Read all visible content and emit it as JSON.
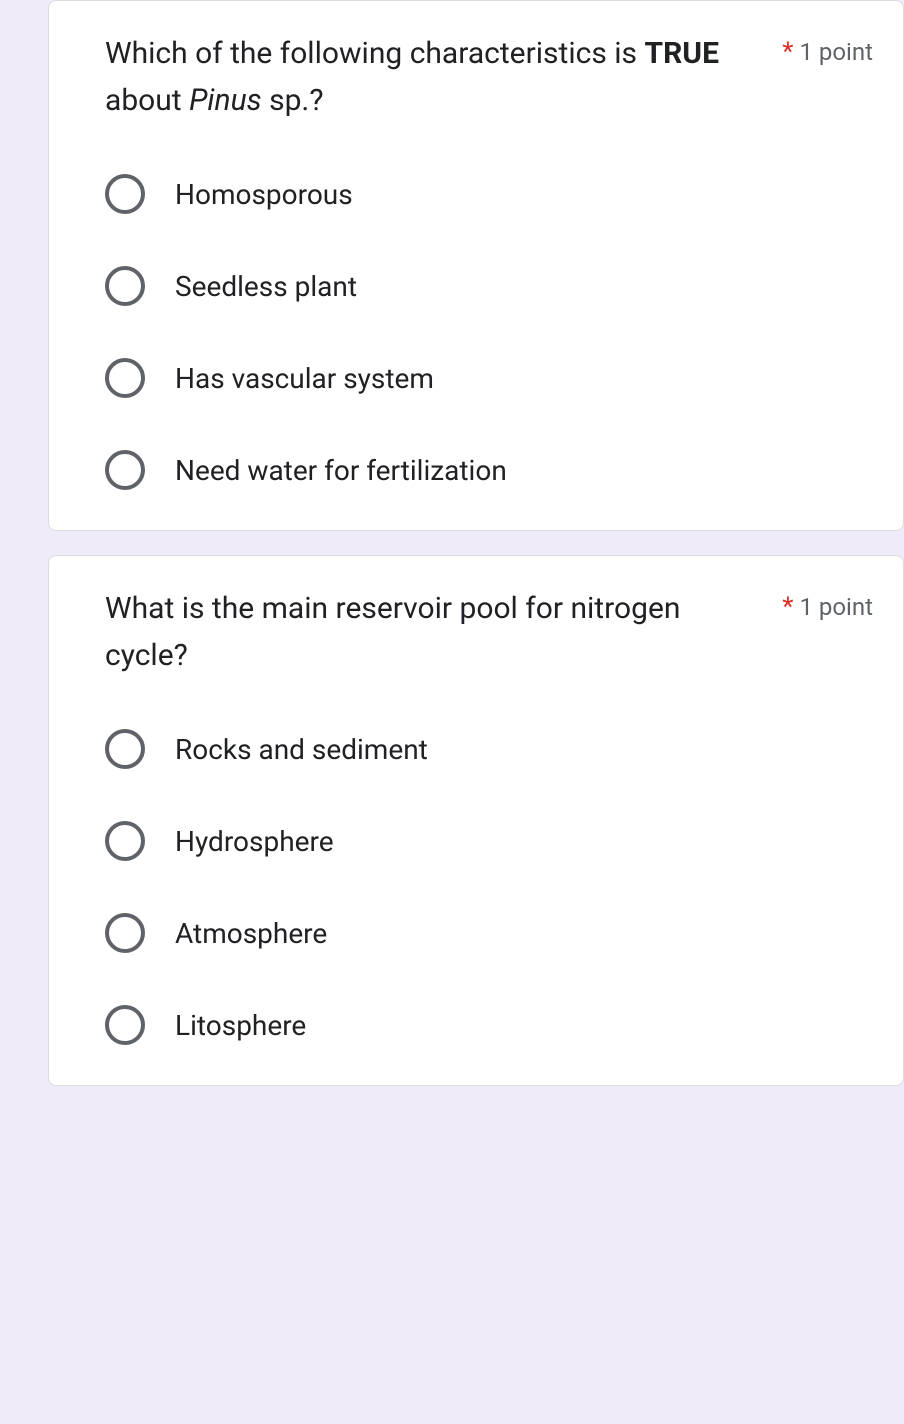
{
  "questions": [
    {
      "prompt_parts": [
        {
          "text": "Which of the following characteristics is ",
          "style": ""
        },
        {
          "text": "TRUE",
          "style": "bold"
        },
        {
          "text": " about ",
          "style": ""
        },
        {
          "text": "Pinus",
          "style": "italic"
        },
        {
          "text": " sp.?",
          "style": ""
        }
      ],
      "required_marker": "*",
      "points": "1 point",
      "options": [
        "Homosporous",
        "Seedless plant",
        "Has vascular system",
        "Need water for fertilization"
      ]
    },
    {
      "prompt_parts": [
        {
          "text": "What is the main reservoir pool for nitrogen cycle?",
          "style": ""
        }
      ],
      "required_marker": "*",
      "points": "1 point",
      "options": [
        "Rocks and sediment",
        "Hydrosphere",
        "Atmosphere",
        "Litosphere"
      ]
    }
  ]
}
